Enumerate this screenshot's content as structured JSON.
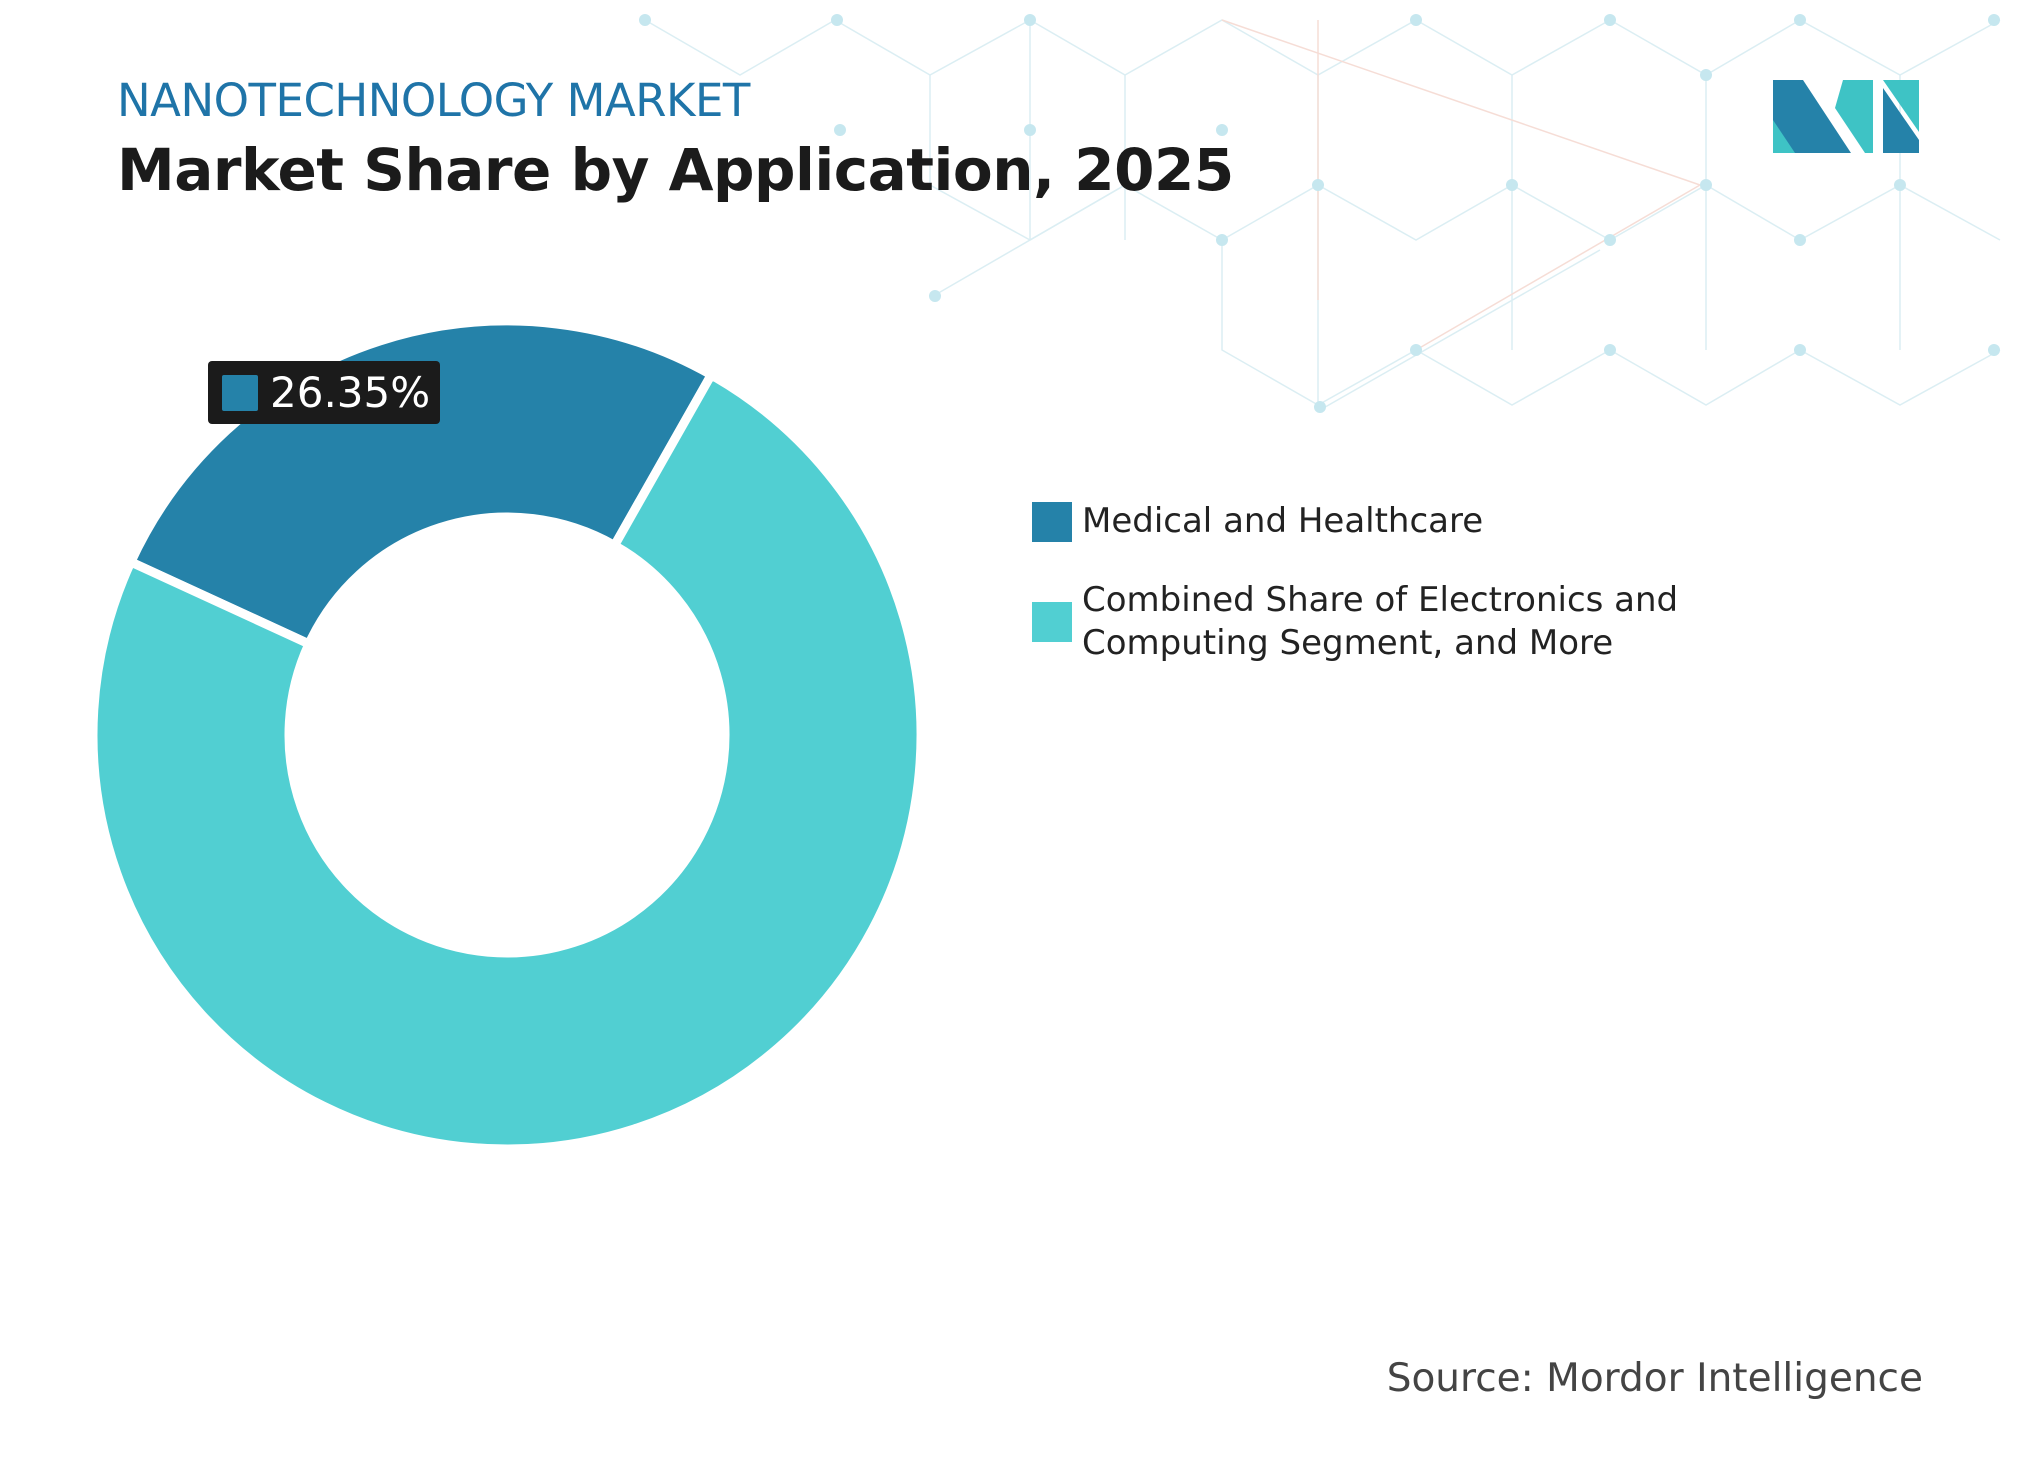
{
  "header": {
    "subtitle": "NANOTECHNOLOGY MARKET",
    "title": "Market Share by Application, 2025"
  },
  "colors": {
    "medical": "#2582a9",
    "other": "#51cfd2",
    "accent": "#1f74a8",
    "label_bg": "#1b1b1b"
  },
  "chart_data": {
    "type": "pie",
    "style": "donut",
    "categories": [
      "Medical and Healthcare",
      "Combined Share of Electronics and Computing Segment, and More"
    ],
    "values": [
      26.35,
      73.65
    ],
    "unit": "%",
    "data_labels": [
      "26.35%"
    ],
    "legend_placement": "right"
  },
  "source": "Source: Mordor Intelligence",
  "logo": {
    "icon": "mordor-intelligence-logo"
  }
}
